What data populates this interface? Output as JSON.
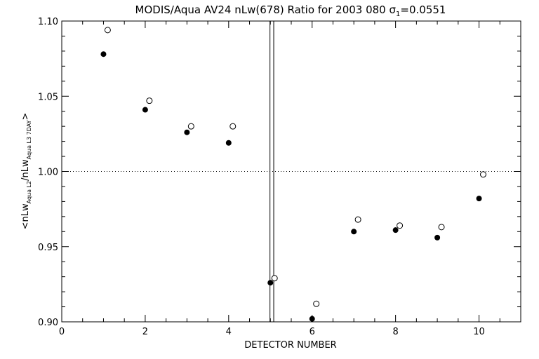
{
  "chart_data": {
    "type": "scatter",
    "title": {
      "main": "MODIS/Aqua AV24 nLw(678) Ratio for 2003 080 ",
      "sigma_symbol": "σ",
      "sigma_sub": "1",
      "sigma_value": "=0.0551"
    },
    "xlabel": "DETECTOR NUMBER",
    "ylabel": {
      "open": "<nLw",
      "sub1": "Aqua L2",
      "mid": "/nLw",
      "sub2": "Aqua L3 7DAY",
      "close": ">"
    },
    "xlim": [
      0,
      11
    ],
    "ylim": [
      0.9,
      1.1
    ],
    "x_ticks": [
      0,
      2,
      4,
      6,
      8,
      10
    ],
    "x_tick_labels": [
      "0",
      "2",
      "4",
      "6",
      "8",
      "10"
    ],
    "y_ticks": [
      0.9,
      0.95,
      1.0,
      1.05,
      1.1
    ],
    "y_tick_labels": [
      "0.90",
      "0.95",
      "1.00",
      "1.05",
      "1.10"
    ],
    "reference_line_y": 1.0,
    "vertical_lines_x": [
      4.99,
      5.08
    ],
    "series": [
      {
        "marker": "filled-circle",
        "x": [
          1,
          2,
          3,
          4,
          5,
          6,
          7,
          8,
          9,
          10
        ],
        "y": [
          1.078,
          1.041,
          1.026,
          1.019,
          0.926,
          0.902,
          0.96,
          0.961,
          0.956,
          0.982
        ]
      },
      {
        "marker": "open-circle",
        "x": [
          1.1,
          2.1,
          3.1,
          4.1,
          5.1,
          6.1,
          7.1,
          8.1,
          9.1,
          10.1
        ],
        "y": [
          1.094,
          1.047,
          1.03,
          1.03,
          0.929,
          0.912,
          0.968,
          0.964,
          0.963,
          0.998
        ]
      }
    ]
  }
}
